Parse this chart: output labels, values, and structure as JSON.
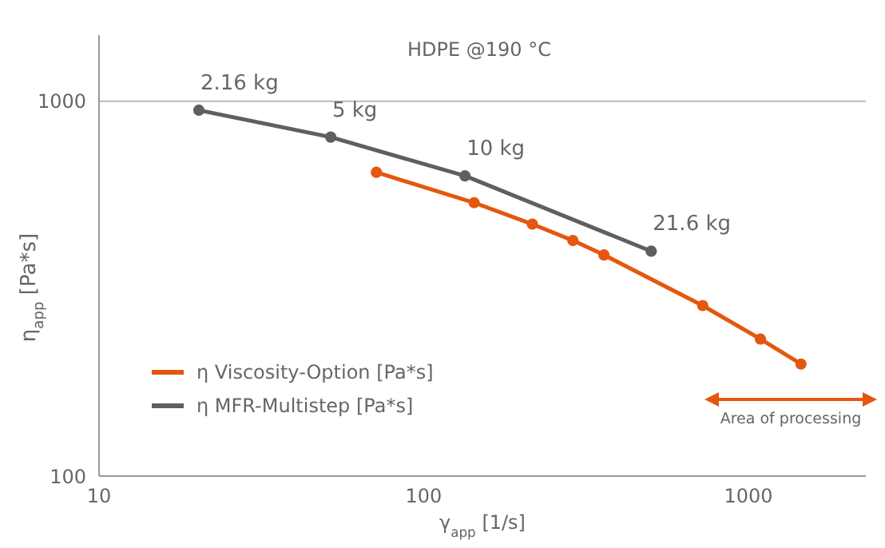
{
  "chart_data": {
    "type": "line",
    "title": "HDPE @190 °C",
    "xlabel": "γ$_{app}$ [1/s]",
    "ylabel": "η$_{app}$ [Pa*s]",
    "series": [
      {
        "name": "η Viscosity-Option [Pa*s]",
        "color": "#e4570f",
        "x": [
          71.5,
          143,
          216,
          288,
          359,
          723,
          1089,
          1452
        ],
        "values": [
          646,
          536,
          470,
          425,
          389,
          285,
          232,
          199
        ]
      },
      {
        "name": "η MFR-Multistep [Pa*s]",
        "color": "#5f5f5f",
        "x": [
          20.3,
          51.7,
          134,
          502
        ],
        "values": [
          946,
          802,
          632,
          398
        ]
      }
    ],
    "annotations": [
      {
        "text": "2.16 kg",
        "x": 20.3,
        "y": 946
      },
      {
        "text": "5 kg",
        "x": 51.7,
        "y": 802
      },
      {
        "text": "10 kg",
        "x": 134,
        "y": 632
      },
      {
        "text": "21.6 kg",
        "x": 502,
        "y": 398
      },
      "Area of processing"
    ],
    "log": "xy",
    "xlim": [
      10,
      2300
    ],
    "ylim": [
      100,
      1500
    ],
    "xticks": [
      10,
      100,
      1000
    ],
    "yticks": [
      100,
      1000
    ],
    "grid": "y",
    "legend": "bottom left",
    "marker": "circle",
    "line_style": "solid"
  }
}
